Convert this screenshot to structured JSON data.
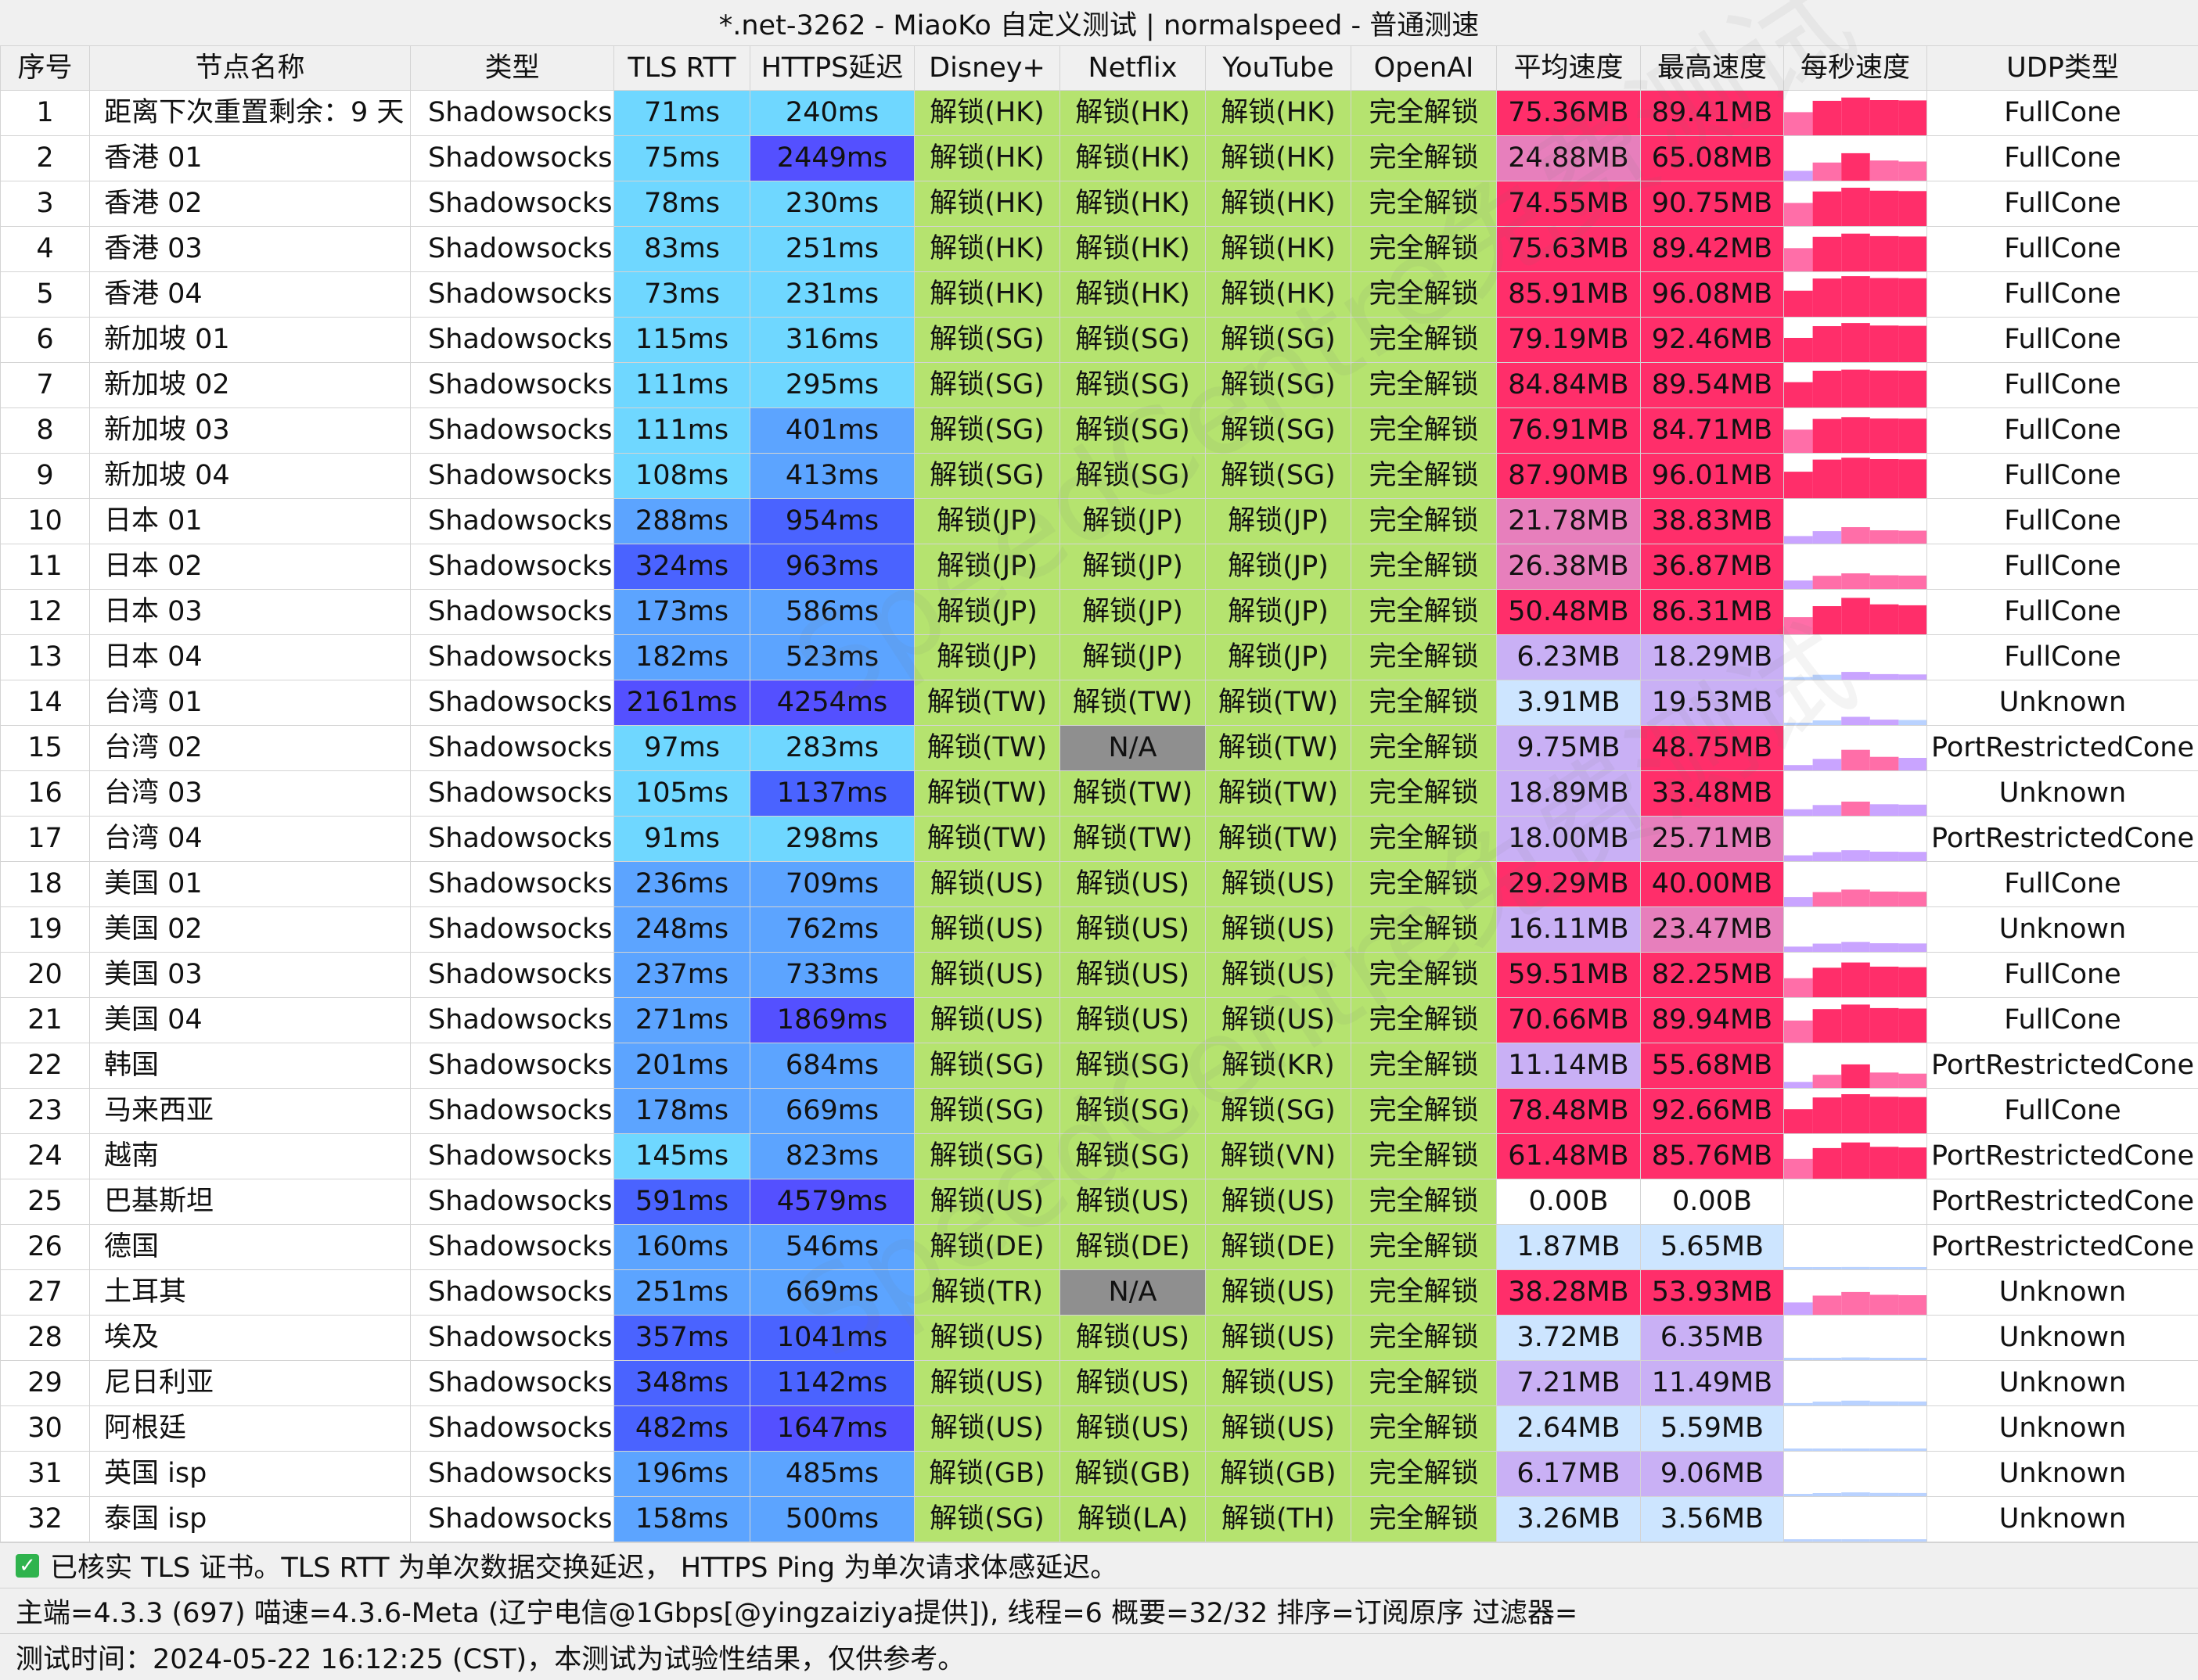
{
  "window_title": "*.net-3262 - MiaoKo 自定义测试 | normalspeed - 普通测速",
  "columns": [
    "序号",
    "节点名称",
    "类型",
    "TLS RTT",
    "HTTPS延迟",
    "Disney+",
    "Netflix",
    "YouTube",
    "OpenAI",
    "平均速度",
    "最高速度",
    "每秒速度",
    "UDP类型"
  ],
  "rows": [
    {
      "idx": "1",
      "name": "距离下次重置剩余：9 天",
      "type": "Shadowsocks",
      "tls": "71ms",
      "https": "240ms",
      "disney": "解锁(HK)",
      "netflix": "解锁(HK)",
      "youtube": "解锁(HK)",
      "openai": "完全解锁",
      "avg": "75.36MB",
      "max": "89.41MB",
      "udp": "FullCone"
    },
    {
      "idx": "2",
      "name": "香港 01",
      "type": "Shadowsocks",
      "tls": "75ms",
      "https": "2449ms",
      "disney": "解锁(HK)",
      "netflix": "解锁(HK)",
      "youtube": "解锁(HK)",
      "openai": "完全解锁",
      "avg": "24.88MB",
      "max": "65.08MB",
      "udp": "FullCone"
    },
    {
      "idx": "3",
      "name": "香港 02",
      "type": "Shadowsocks",
      "tls": "78ms",
      "https": "230ms",
      "disney": "解锁(HK)",
      "netflix": "解锁(HK)",
      "youtube": "解锁(HK)",
      "openai": "完全解锁",
      "avg": "74.55MB",
      "max": "90.75MB",
      "udp": "FullCone"
    },
    {
      "idx": "4",
      "name": "香港 03",
      "type": "Shadowsocks",
      "tls": "83ms",
      "https": "251ms",
      "disney": "解锁(HK)",
      "netflix": "解锁(HK)",
      "youtube": "解锁(HK)",
      "openai": "完全解锁",
      "avg": "75.63MB",
      "max": "89.42MB",
      "udp": "FullCone"
    },
    {
      "idx": "5",
      "name": "香港 04",
      "type": "Shadowsocks",
      "tls": "73ms",
      "https": "231ms",
      "disney": "解锁(HK)",
      "netflix": "解锁(HK)",
      "youtube": "解锁(HK)",
      "openai": "完全解锁",
      "avg": "85.91MB",
      "max": "96.08MB",
      "udp": "FullCone"
    },
    {
      "idx": "6",
      "name": "新加坡 01",
      "type": "Shadowsocks",
      "tls": "115ms",
      "https": "316ms",
      "disney": "解锁(SG)",
      "netflix": "解锁(SG)",
      "youtube": "解锁(SG)",
      "openai": "完全解锁",
      "avg": "79.19MB",
      "max": "92.46MB",
      "udp": "FullCone"
    },
    {
      "idx": "7",
      "name": "新加坡 02",
      "type": "Shadowsocks",
      "tls": "111ms",
      "https": "295ms",
      "disney": "解锁(SG)",
      "netflix": "解锁(SG)",
      "youtube": "解锁(SG)",
      "openai": "完全解锁",
      "avg": "84.84MB",
      "max": "89.54MB",
      "udp": "FullCone"
    },
    {
      "idx": "8",
      "name": "新加坡 03",
      "type": "Shadowsocks",
      "tls": "111ms",
      "https": "401ms",
      "disney": "解锁(SG)",
      "netflix": "解锁(SG)",
      "youtube": "解锁(SG)",
      "openai": "完全解锁",
      "avg": "76.91MB",
      "max": "84.71MB",
      "udp": "FullCone"
    },
    {
      "idx": "9",
      "name": "新加坡 04",
      "type": "Shadowsocks",
      "tls": "108ms",
      "https": "413ms",
      "disney": "解锁(SG)",
      "netflix": "解锁(SG)",
      "youtube": "解锁(SG)",
      "openai": "完全解锁",
      "avg": "87.90MB",
      "max": "96.01MB",
      "udp": "FullCone"
    },
    {
      "idx": "10",
      "name": "日本 01",
      "type": "Shadowsocks",
      "tls": "288ms",
      "https": "954ms",
      "disney": "解锁(JP)",
      "netflix": "解锁(JP)",
      "youtube": "解锁(JP)",
      "openai": "完全解锁",
      "avg": "21.78MB",
      "max": "38.83MB",
      "udp": "FullCone"
    },
    {
      "idx": "11",
      "name": "日本 02",
      "type": "Shadowsocks",
      "tls": "324ms",
      "https": "963ms",
      "disney": "解锁(JP)",
      "netflix": "解锁(JP)",
      "youtube": "解锁(JP)",
      "openai": "完全解锁",
      "avg": "26.38MB",
      "max": "36.87MB",
      "udp": "FullCone"
    },
    {
      "idx": "12",
      "name": "日本 03",
      "type": "Shadowsocks",
      "tls": "173ms",
      "https": "586ms",
      "disney": "解锁(JP)",
      "netflix": "解锁(JP)",
      "youtube": "解锁(JP)",
      "openai": "完全解锁",
      "avg": "50.48MB",
      "max": "86.31MB",
      "udp": "FullCone"
    },
    {
      "idx": "13",
      "name": "日本 04",
      "type": "Shadowsocks",
      "tls": "182ms",
      "https": "523ms",
      "disney": "解锁(JP)",
      "netflix": "解锁(JP)",
      "youtube": "解锁(JP)",
      "openai": "完全解锁",
      "avg": "6.23MB",
      "max": "18.29MB",
      "udp": "FullCone"
    },
    {
      "idx": "14",
      "name": "台湾 01",
      "type": "Shadowsocks",
      "tls": "2161ms",
      "https": "4254ms",
      "disney": "解锁(TW)",
      "netflix": "解锁(TW)",
      "youtube": "解锁(TW)",
      "openai": "完全解锁",
      "avg": "3.91MB",
      "max": "19.53MB",
      "udp": "Unknown"
    },
    {
      "idx": "15",
      "name": "台湾 02",
      "type": "Shadowsocks",
      "tls": "97ms",
      "https": "283ms",
      "disney": "解锁(TW)",
      "netflix": "N/A",
      "youtube": "解锁(TW)",
      "openai": "完全解锁",
      "avg": "9.75MB",
      "max": "48.75MB",
      "udp": "PortRestrictedCone"
    },
    {
      "idx": "16",
      "name": "台湾 03",
      "type": "Shadowsocks",
      "tls": "105ms",
      "https": "1137ms",
      "disney": "解锁(TW)",
      "netflix": "解锁(TW)",
      "youtube": "解锁(TW)",
      "openai": "完全解锁",
      "avg": "18.89MB",
      "max": "33.48MB",
      "udp": "Unknown"
    },
    {
      "idx": "17",
      "name": "台湾 04",
      "type": "Shadowsocks",
      "tls": "91ms",
      "https": "298ms",
      "disney": "解锁(TW)",
      "netflix": "解锁(TW)",
      "youtube": "解锁(TW)",
      "openai": "完全解锁",
      "avg": "18.00MB",
      "max": "25.71MB",
      "udp": "PortRestrictedCone"
    },
    {
      "idx": "18",
      "name": "美国 01",
      "type": "Shadowsocks",
      "tls": "236ms",
      "https": "709ms",
      "disney": "解锁(US)",
      "netflix": "解锁(US)",
      "youtube": "解锁(US)",
      "openai": "完全解锁",
      "avg": "29.29MB",
      "max": "40.00MB",
      "udp": "FullCone"
    },
    {
      "idx": "19",
      "name": "美国 02",
      "type": "Shadowsocks",
      "tls": "248ms",
      "https": "762ms",
      "disney": "解锁(US)",
      "netflix": "解锁(US)",
      "youtube": "解锁(US)",
      "openai": "完全解锁",
      "avg": "16.11MB",
      "max": "23.47MB",
      "udp": "Unknown"
    },
    {
      "idx": "20",
      "name": "美国 03",
      "type": "Shadowsocks",
      "tls": "237ms",
      "https": "733ms",
      "disney": "解锁(US)",
      "netflix": "解锁(US)",
      "youtube": "解锁(US)",
      "openai": "完全解锁",
      "avg": "59.51MB",
      "max": "82.25MB",
      "udp": "FullCone"
    },
    {
      "idx": "21",
      "name": "美国 04",
      "type": "Shadowsocks",
      "tls": "271ms",
      "https": "1869ms",
      "disney": "解锁(US)",
      "netflix": "解锁(US)",
      "youtube": "解锁(US)",
      "openai": "完全解锁",
      "avg": "70.66MB",
      "max": "89.94MB",
      "udp": "FullCone"
    },
    {
      "idx": "22",
      "name": "韩国",
      "type": "Shadowsocks",
      "tls": "201ms",
      "https": "684ms",
      "disney": "解锁(SG)",
      "netflix": "解锁(SG)",
      "youtube": "解锁(KR)",
      "openai": "完全解锁",
      "avg": "11.14MB",
      "max": "55.68MB",
      "udp": "PortRestrictedCone"
    },
    {
      "idx": "23",
      "name": "马来西亚",
      "type": "Shadowsocks",
      "tls": "178ms",
      "https": "669ms",
      "disney": "解锁(SG)",
      "netflix": "解锁(SG)",
      "youtube": "解锁(SG)",
      "openai": "完全解锁",
      "avg": "78.48MB",
      "max": "92.66MB",
      "udp": "FullCone"
    },
    {
      "idx": "24",
      "name": "越南",
      "type": "Shadowsocks",
      "tls": "145ms",
      "https": "823ms",
      "disney": "解锁(SG)",
      "netflix": "解锁(SG)",
      "youtube": "解锁(VN)",
      "openai": "完全解锁",
      "avg": "61.48MB",
      "max": "85.76MB",
      "udp": "PortRestrictedCone"
    },
    {
      "idx": "25",
      "name": "巴基斯坦",
      "type": "Shadowsocks",
      "tls": "591ms",
      "https": "4579ms",
      "disney": "解锁(US)",
      "netflix": "解锁(US)",
      "youtube": "解锁(US)",
      "openai": "完全解锁",
      "avg": "0.00B",
      "max": "0.00B",
      "udp": "PortRestrictedCone"
    },
    {
      "idx": "26",
      "name": "德国",
      "type": "Shadowsocks",
      "tls": "160ms",
      "https": "546ms",
      "disney": "解锁(DE)",
      "netflix": "解锁(DE)",
      "youtube": "解锁(DE)",
      "openai": "完全解锁",
      "avg": "1.87MB",
      "max": "5.65MB",
      "udp": "PortRestrictedCone"
    },
    {
      "idx": "27",
      "name": "土耳其",
      "type": "Shadowsocks",
      "tls": "251ms",
      "https": "669ms",
      "disney": "解锁(TR)",
      "netflix": "N/A",
      "youtube": "解锁(US)",
      "openai": "完全解锁",
      "avg": "38.28MB",
      "max": "53.93MB",
      "udp": "Unknown"
    },
    {
      "idx": "28",
      "name": "埃及",
      "type": "Shadowsocks",
      "tls": "357ms",
      "https": "1041ms",
      "disney": "解锁(US)",
      "netflix": "解锁(US)",
      "youtube": "解锁(US)",
      "openai": "完全解锁",
      "avg": "3.72MB",
      "max": "6.35MB",
      "udp": "Unknown"
    },
    {
      "idx": "29",
      "name": "尼日利亚",
      "type": "Shadowsocks",
      "tls": "348ms",
      "https": "1142ms",
      "disney": "解锁(US)",
      "netflix": "解锁(US)",
      "youtube": "解锁(US)",
      "openai": "完全解锁",
      "avg": "7.21MB",
      "max": "11.49MB",
      "udp": "Unknown"
    },
    {
      "idx": "30",
      "name": "阿根廷",
      "type": "Shadowsocks",
      "tls": "482ms",
      "https": "1647ms",
      "disney": "解锁(US)",
      "netflix": "解锁(US)",
      "youtube": "解锁(US)",
      "openai": "完全解锁",
      "avg": "2.64MB",
      "max": "5.59MB",
      "udp": "Unknown"
    },
    {
      "idx": "31",
      "name": "英国 isp",
      "type": "Shadowsocks",
      "tls": "196ms",
      "https": "485ms",
      "disney": "解锁(GB)",
      "netflix": "解锁(GB)",
      "youtube": "解锁(GB)",
      "openai": "完全解锁",
      "avg": "6.17MB",
      "max": "9.06MB",
      "udp": "Unknown"
    },
    {
      "idx": "32",
      "name": "泰国 isp",
      "type": "Shadowsocks",
      "tls": "158ms",
      "https": "500ms",
      "disney": "解锁(SG)",
      "netflix": "解锁(LA)",
      "youtube": "解锁(TH)",
      "openai": "完全解锁",
      "avg": "3.26MB",
      "max": "3.56MB",
      "udp": "Unknown"
    }
  ],
  "footer": {
    "line1": "已核实 TLS 证书。TLS RTT 为单次数据交换延迟， HTTPS Ping 为单次请求体感延迟。",
    "line2": "主端=4.3.3 (697) 喵速=4.3.6-Meta (辽宁电信@1Gbps[@yingzaiziya提供]), 线程=6 概要=32/32 排序=订阅原序 过滤器=",
    "line3": "测试时间：2024-05-22 16:12:25 (CST)，本测试为试验性结果，仅供参考。"
  },
  "colors": {
    "unlock_green": "#b5e36f",
    "na_gray": "#8f8f8f",
    "latency_light": "#6fd7ff",
    "latency_mid": "#5ca4ff",
    "latency_dark": "#4a63ff",
    "latency_darker": "#5450ff",
    "speed_red": "#ff2e6a",
    "speed_pink": "#e77fbc",
    "speed_lavender": "#c9b0f5",
    "speed_lightblue": "#cde5ff",
    "spark_red": "#ff2e6a",
    "spark_pink": "#ff6ea8",
    "spark_violet": "#c9a4ff",
    "spark_blue": "#b9d2ff"
  },
  "watermark": "SpeedCentre免费测试",
  "check_icon_glyph": "✓"
}
